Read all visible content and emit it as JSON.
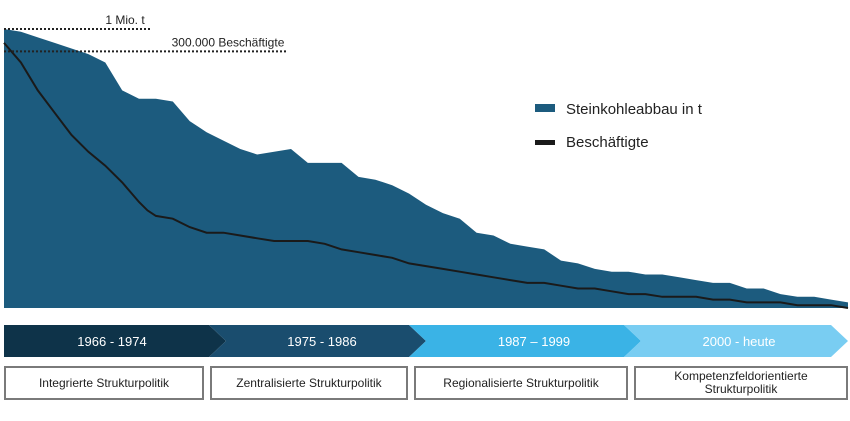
{
  "chart_data": {
    "type": "area",
    "x": [
      0,
      2,
      4,
      6,
      8,
      10,
      12,
      14,
      16,
      17,
      18,
      20,
      22,
      24,
      26,
      28,
      30,
      32,
      34,
      36,
      38,
      40,
      42,
      44,
      46,
      48,
      50,
      52,
      54,
      56,
      58,
      60,
      62,
      64,
      66,
      68,
      70,
      72,
      74,
      76,
      78,
      80,
      82,
      84,
      86,
      88,
      90,
      92,
      94,
      96,
      98,
      100
    ],
    "series": [
      {
        "name": "Steinkohleabbau in t",
        "values": [
          1.0,
          0.99,
          0.97,
          0.95,
          0.93,
          0.91,
          0.88,
          0.78,
          0.75,
          0.75,
          0.75,
          0.74,
          0.67,
          0.63,
          0.6,
          0.57,
          0.55,
          0.56,
          0.57,
          0.52,
          0.52,
          0.52,
          0.47,
          0.46,
          0.44,
          0.41,
          0.37,
          0.34,
          0.32,
          0.27,
          0.26,
          0.23,
          0.22,
          0.21,
          0.17,
          0.16,
          0.14,
          0.13,
          0.13,
          0.12,
          0.12,
          0.11,
          0.1,
          0.09,
          0.09,
          0.07,
          0.07,
          0.05,
          0.04,
          0.04,
          0.03,
          0.02
        ]
      },
      {
        "name": "Beschäftigte",
        "values": [
          0.95,
          0.88,
          0.78,
          0.7,
          0.62,
          0.56,
          0.51,
          0.45,
          0.38,
          0.35,
          0.33,
          0.32,
          0.29,
          0.27,
          0.27,
          0.26,
          0.25,
          0.24,
          0.24,
          0.24,
          0.23,
          0.21,
          0.2,
          0.19,
          0.18,
          0.16,
          0.15,
          0.14,
          0.13,
          0.12,
          0.11,
          0.1,
          0.09,
          0.09,
          0.08,
          0.07,
          0.07,
          0.06,
          0.05,
          0.05,
          0.04,
          0.04,
          0.04,
          0.03,
          0.03,
          0.02,
          0.02,
          0.02,
          0.01,
          0.01,
          0.01,
          0.0
        ]
      }
    ],
    "ylim": [
      0,
      1.1
    ],
    "reference_lines": [
      {
        "label": "1 Mio. t",
        "value": 1.0
      },
      {
        "label": "300.000 Beschäftigte",
        "value": 0.92
      }
    ],
    "legend": {
      "placement": "right",
      "items": [
        {
          "label": "Steinkohleabbau in t",
          "color": "#1c5b7e"
        },
        {
          "label": "Beschäftigte",
          "color": "#1a1a1a"
        }
      ]
    },
    "title": "",
    "xlabel": "",
    "ylabel": "",
    "grid": false
  },
  "timeline": {
    "phases": [
      {
        "label": "1966 - 1974",
        "color": "#0e3349"
      },
      {
        "label": "1975 - 1986",
        "color": "#1a4d6e"
      },
      {
        "label": "1987 – 1999",
        "color": "#3ab3e6"
      },
      {
        "label": "2000 - heute",
        "color": "#79cdf2"
      }
    ]
  },
  "policies": [
    "Integrierte Strukturpolitik",
    "Zentralisierte Strukturpolitik",
    "Regionalisierte Strukturpolitik",
    "Kompetenzfeldorientierte Strukturpolitik"
  ],
  "colors": {
    "area": "#1c5b7e",
    "line": "#1a1a1a"
  }
}
